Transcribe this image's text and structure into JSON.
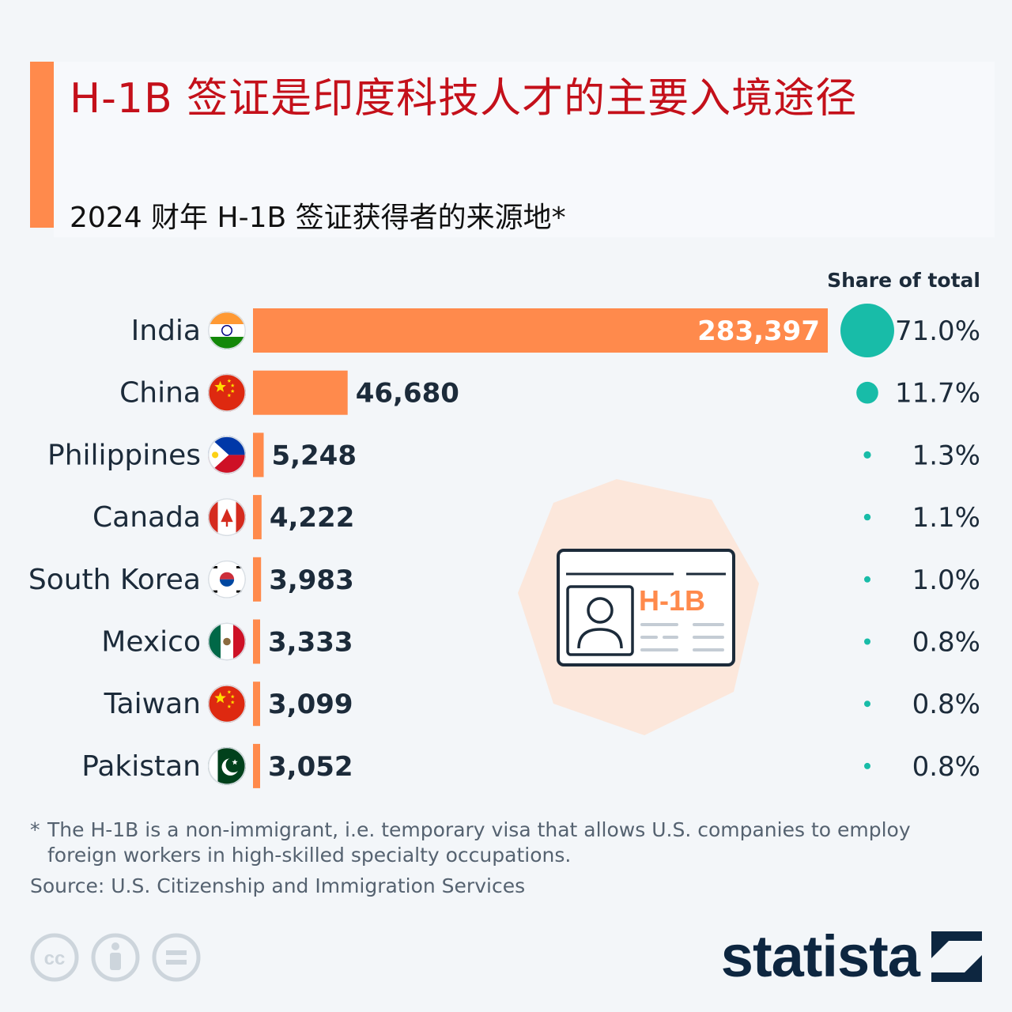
{
  "title": "H-1B 签证是印度科技人才的主要入境途径",
  "subtitle": "2024 财年 H-1B 签证获得者的来源地*",
  "share_header": "Share of total",
  "chart_data": {
    "type": "bar",
    "orientation": "horizontal",
    "categories": [
      "India",
      "China",
      "Philippines",
      "Canada",
      "South Korea",
      "Mexico",
      "Taiwan",
      "Pakistan"
    ],
    "values": [
      283397,
      46680,
      5248,
      4222,
      3983,
      3333,
      3099,
      3052
    ],
    "value_labels": [
      "283,397",
      "46,680",
      "5,248",
      "4,222",
      "3,983",
      "3,333",
      "3,099",
      "3,052"
    ],
    "share_of_total": [
      71.0,
      11.7,
      1.3,
      1.1,
      1.0,
      0.8,
      0.8,
      0.8
    ],
    "share_labels": [
      "71.0%",
      "11.7%",
      "1.3%",
      "1.1%",
      "1.0%",
      "0.8%",
      "0.8%",
      "0.8%"
    ],
    "flags": [
      "india-flag",
      "china-flag",
      "philippines-flag",
      "canada-flag",
      "south-korea-flag",
      "mexico-flag",
      "taiwan-flag",
      "pakistan-flag"
    ],
    "xlim": [
      0,
      283397
    ],
    "grid": false,
    "legend": "none"
  },
  "illustration": {
    "card_label": "H-1B"
  },
  "footnote": {
    "marker": "*",
    "text": "The H-1B is a non-immigrant, i.e. temporary visa that allows U.S. companies to employ foreign workers in high-skilled specialty occupations."
  },
  "source": "Source: U.S. Citizenship and Immigration Services",
  "license_icons": [
    "cc-icon",
    "by-attribution-icon",
    "no-derivatives-icon"
  ],
  "brand": {
    "logo_text": "statista"
  },
  "colors": {
    "bar": "#ff8a4c",
    "title": "#c4101a",
    "share_dot": "#18bca8",
    "value_text": "#1c2b3a",
    "background": "#f3f6f9"
  }
}
